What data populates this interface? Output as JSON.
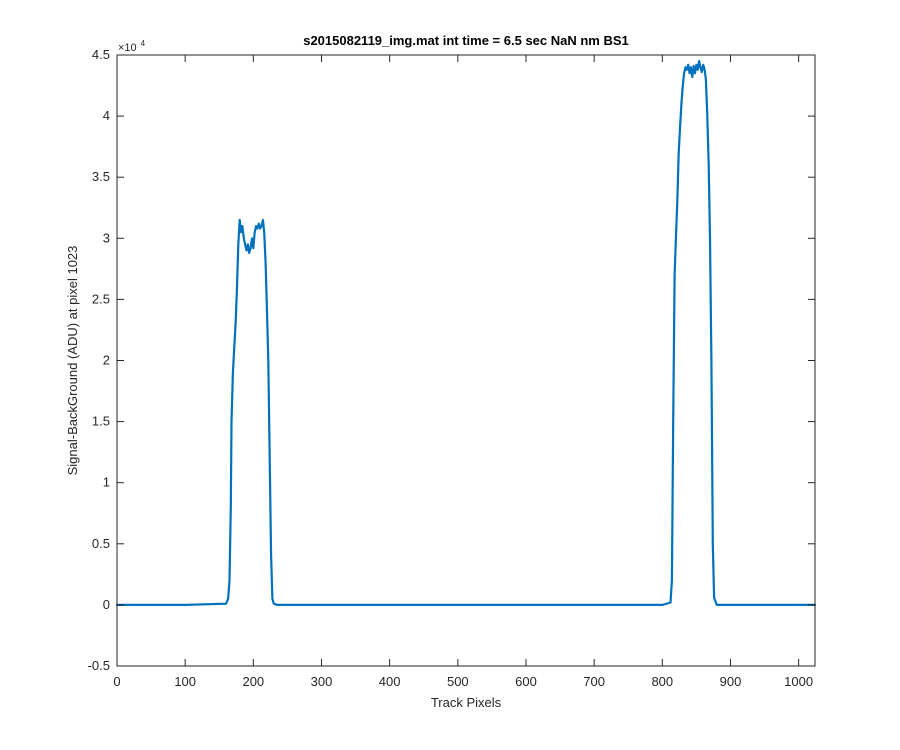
{
  "chart_data": {
    "type": "line",
    "title": "s2015082119_img.mat int time = 6.5 sec  NaN nm BS1",
    "xlabel": "Track Pixels",
    "ylabel": "Signal-BackGround (ADU) at pixel 1023",
    "xlim": [
      0,
      1024
    ],
    "ylim": [
      -5000,
      45000
    ],
    "xticks": [
      0,
      100,
      200,
      300,
      400,
      500,
      600,
      700,
      800,
      900,
      1000
    ],
    "xtick_labels": [
      "0",
      "100",
      "200",
      "300",
      "400",
      "500",
      "600",
      "700",
      "800",
      "900",
      "1000"
    ],
    "yticks": [
      -5000,
      0,
      5000,
      10000,
      15000,
      20000,
      25000,
      30000,
      35000,
      40000,
      45000
    ],
    "ytick_labels": [
      "-0.5",
      "0",
      "0.5",
      "1",
      "1.5",
      "2",
      "2.5",
      "3",
      "3.5",
      "4",
      "4.5"
    ],
    "y_exponent": "×10",
    "y_exponent_power": "4",
    "grid": false,
    "legend": false,
    "line_color": "#0072BD",
    "series": [
      {
        "x": [
          0,
          100,
          160,
          163,
          165,
          167,
          168,
          170,
          172,
          174,
          176,
          178,
          180,
          182,
          184,
          186,
          188,
          190,
          192,
          194,
          196,
          198,
          200,
          202,
          204,
          206,
          208,
          210,
          212,
          214,
          216,
          218,
          220,
          222,
          224,
          226,
          228,
          230,
          235,
          300,
          400,
          500,
          600,
          700,
          800,
          812,
          814,
          816,
          818,
          820,
          822,
          824,
          826,
          828,
          830,
          832,
          834,
          836,
          838,
          840,
          842,
          844,
          846,
          848,
          850,
          852,
          854,
          856,
          858,
          860,
          862,
          864,
          866,
          868,
          870,
          872,
          874,
          876,
          880,
          900,
          1000,
          1024
        ],
        "y": [
          0,
          0,
          100,
          500,
          2000,
          8000,
          15000,
          19000,
          21000,
          23000,
          26000,
          29500,
          31500,
          30500,
          31000,
          30000,
          29500,
          29000,
          29500,
          28800,
          29200,
          30000,
          29200,
          30500,
          31000,
          30800,
          31200,
          30800,
          31000,
          31500,
          30500,
          28000,
          24000,
          20000,
          12000,
          4000,
          500,
          100,
          0,
          0,
          0,
          0,
          0,
          0,
          0,
          200,
          2000,
          15000,
          27000,
          30000,
          33000,
          37000,
          39000,
          41000,
          42500,
          43500,
          44000,
          43800,
          44200,
          43500,
          44000,
          43200,
          44100,
          43500,
          44200,
          43800,
          44500,
          44000,
          43600,
          44200,
          43800,
          43000,
          40000,
          36000,
          30000,
          20000,
          5000,
          600,
          0,
          0,
          0,
          0
        ]
      }
    ]
  }
}
